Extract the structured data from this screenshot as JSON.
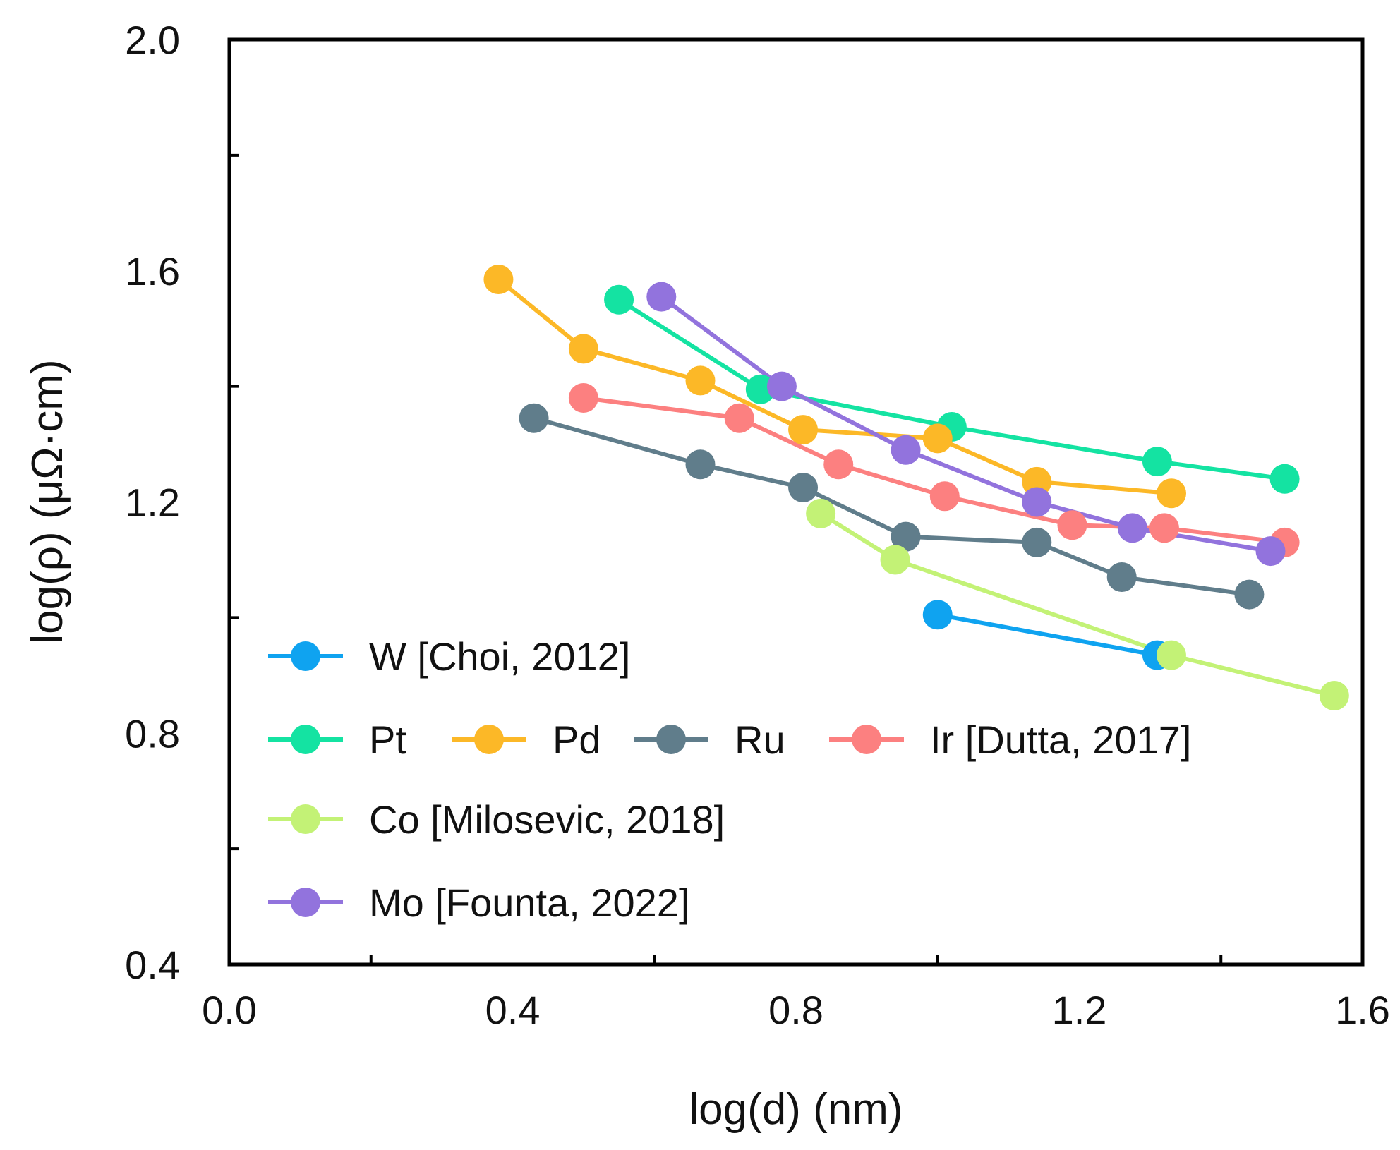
{
  "chart_data": {
    "type": "line",
    "xlabel": "log(d) (nm)",
    "ylabel": "log(ρ) (μΩ·cm)",
    "xlim": [
      0.0,
      1.6
    ],
    "ylim": [
      0.4,
      2.0
    ],
    "x_tick_labels": [
      "0.0",
      "0.4",
      "0.8",
      "1.2",
      "1.6"
    ],
    "y_tick_labels": [
      "0.4",
      "0.8",
      "1.2",
      "1.6",
      "2.0"
    ],
    "grid": false,
    "legend_position": "bottom-left",
    "series": [
      {
        "name": "W [Choi, 2012]",
        "color": "#0fa3f0",
        "points": [
          [
            1.0,
            1.005
          ],
          [
            1.31,
            0.935
          ]
        ]
      },
      {
        "name": "Pt",
        "color": "#14e3a2",
        "points": [
          [
            0.55,
            1.55
          ],
          [
            0.75,
            1.395
          ],
          [
            1.02,
            1.33
          ],
          [
            1.31,
            1.27
          ],
          [
            1.49,
            1.24
          ]
        ]
      },
      {
        "name": "Pd",
        "color": "#fcb827",
        "points": [
          [
            0.38,
            1.585
          ],
          [
            0.5,
            1.465
          ],
          [
            0.665,
            1.41
          ],
          [
            0.81,
            1.325
          ],
          [
            1.0,
            1.31
          ],
          [
            1.14,
            1.235
          ],
          [
            1.33,
            1.215
          ]
        ]
      },
      {
        "name": "Ru",
        "color": "#607d8b",
        "points": [
          [
            0.43,
            1.345
          ],
          [
            0.665,
            1.265
          ],
          [
            0.81,
            1.225
          ],
          [
            0.955,
            1.14
          ],
          [
            1.14,
            1.13
          ],
          [
            1.26,
            1.07
          ],
          [
            1.44,
            1.04
          ]
        ]
      },
      {
        "name": "Ir [Dutta, 2017]",
        "color": "#fc8080",
        "points": [
          [
            0.5,
            1.38
          ],
          [
            0.72,
            1.345
          ],
          [
            0.86,
            1.265
          ],
          [
            1.01,
            1.21
          ],
          [
            1.19,
            1.16
          ],
          [
            1.32,
            1.155
          ],
          [
            1.49,
            1.13
          ]
        ]
      },
      {
        "name": "Co [Milosevic, 2018]",
        "color": "#c3f276",
        "points": [
          [
            0.835,
            1.18
          ],
          [
            0.94,
            1.1
          ],
          [
            1.33,
            0.935
          ],
          [
            1.56,
            0.865
          ]
        ]
      },
      {
        "name": "Mo [Founta, 2022]",
        "color": "#9273dd",
        "points": [
          [
            0.61,
            1.555
          ],
          [
            0.78,
            1.4
          ],
          [
            0.955,
            1.29
          ],
          [
            1.14,
            1.2
          ],
          [
            1.275,
            1.155
          ],
          [
            1.47,
            1.115
          ]
        ]
      }
    ]
  }
}
